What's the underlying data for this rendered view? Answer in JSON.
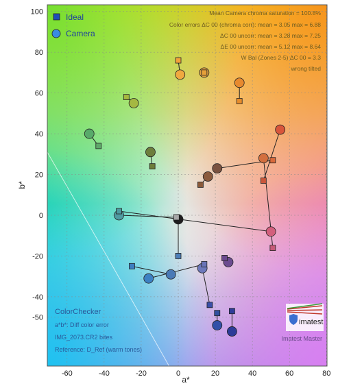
{
  "chart_data": {
    "type": "scatter",
    "title": "",
    "xlabel": "a*",
    "ylabel": "b*",
    "xlim": [
      -70,
      82
    ],
    "ylim": [
      -57,
      103
    ],
    "xticks": [
      "-60",
      "-40",
      "-20",
      "0",
      "20",
      "40",
      "60",
      "80"
    ],
    "yticks": [
      "100",
      "80",
      "60",
      "40",
      "20",
      "0",
      "-20",
      "-40",
      "-50"
    ],
    "legend": {
      "placement": "top-left",
      "entries": [
        "Ideal",
        "Camera"
      ]
    },
    "stats": [
      "Mean Camera chroma saturation = 100.8%",
      "Color errors ΔC 00 (chroma corr): mean = 3.05  max = 6.88",
      "ΔC 00 uncorr: mean = 3.28  max = 7.25",
      "ΔE 00 uncorr: mean = 5.12  max = 8.64",
      "W Bal (Zones 2-5) ΔC 00 = 3.3",
      "wrong tilted"
    ],
    "footer_left": [
      "ColorChecker",
      "a*b*: Diff color error",
      "IMG_2073.CR2 bites",
      "Reference: D_Ref (warm tones)"
    ],
    "footer_right": "Imatest Master",
    "logo": "imatest",
    "series": [
      {
        "name": "Ideal",
        "points": [
          {
            "x": 0,
            "y": 76,
            "color": "#f2a23a"
          },
          {
            "x": 14,
            "y": 70,
            "color": "#e7a03a"
          },
          {
            "x": 33,
            "y": 56,
            "color": "#e88d2c"
          },
          {
            "x": -28,
            "y": 58,
            "color": "#a6b840"
          },
          {
            "x": -43,
            "y": 34,
            "color": "#5fa86a"
          },
          {
            "x": -14,
            "y": 24,
            "color": "#6d7d3a"
          },
          {
            "x": 12,
            "y": 15,
            "color": "#8a5a3a"
          },
          {
            "x": 51,
            "y": 27,
            "color": "#d96a3b"
          },
          {
            "x": 46,
            "y": 17,
            "color": "#c9563a"
          },
          {
            "x": 51,
            "y": -16,
            "color": "#c65a78"
          },
          {
            "x": -32,
            "y": 2,
            "color": "#4e9aa0"
          },
          {
            "x": -1,
            "y": -1,
            "color": "#a8a8a8"
          },
          {
            "x": 0,
            "y": -20,
            "color": "#4e7fb8"
          },
          {
            "x": -25,
            "y": -25,
            "color": "#3d7ec0"
          },
          {
            "x": 14,
            "y": -24,
            "color": "#6a74b8"
          },
          {
            "x": 17,
            "y": -44,
            "color": "#3a4fa8"
          },
          {
            "x": 21,
            "y": -48,
            "color": "#3050a0"
          },
          {
            "x": 29,
            "y": -47,
            "color": "#303c9a"
          },
          {
            "x": 25,
            "y": -21,
            "color": "#6a4a8e"
          }
        ]
      },
      {
        "name": "Camera",
        "points": [
          {
            "x": 1,
            "y": 69,
            "color": "#f0a940"
          },
          {
            "x": 14,
            "y": 70,
            "color": "#e3a341"
          },
          {
            "x": 33,
            "y": 65,
            "color": "#e78a2f"
          },
          {
            "x": -24,
            "y": 55,
            "color": "#a5b842"
          },
          {
            "x": -48,
            "y": 40,
            "color": "#58aa6a"
          },
          {
            "x": -15,
            "y": 31,
            "color": "#6d7e3d"
          },
          {
            "x": 16,
            "y": 19,
            "color": "#8b5b3e"
          },
          {
            "x": 21,
            "y": 23,
            "color": "#7a5240"
          },
          {
            "x": 55,
            "y": 42,
            "color": "#d8563b"
          },
          {
            "x": 46,
            "y": 28,
            "color": "#d36f3e"
          },
          {
            "x": 50,
            "y": -8,
            "color": "#d35f7d"
          },
          {
            "x": -32,
            "y": 0,
            "color": "#4f9ba2"
          },
          {
            "x": 0,
            "y": -2,
            "color": "#1e1e1e"
          },
          {
            "x": -4,
            "y": -29,
            "color": "#4a7ab6"
          },
          {
            "x": -16,
            "y": -31,
            "color": "#3d81c3"
          },
          {
            "x": 13,
            "y": -26,
            "color": "#6d78bb"
          },
          {
            "x": 21,
            "y": -54,
            "color": "#3250a8"
          },
          {
            "x": 29,
            "y": -57,
            "color": "#2d3b98"
          },
          {
            "x": 27,
            "y": -23,
            "color": "#6c4c90"
          }
        ]
      }
    ]
  }
}
